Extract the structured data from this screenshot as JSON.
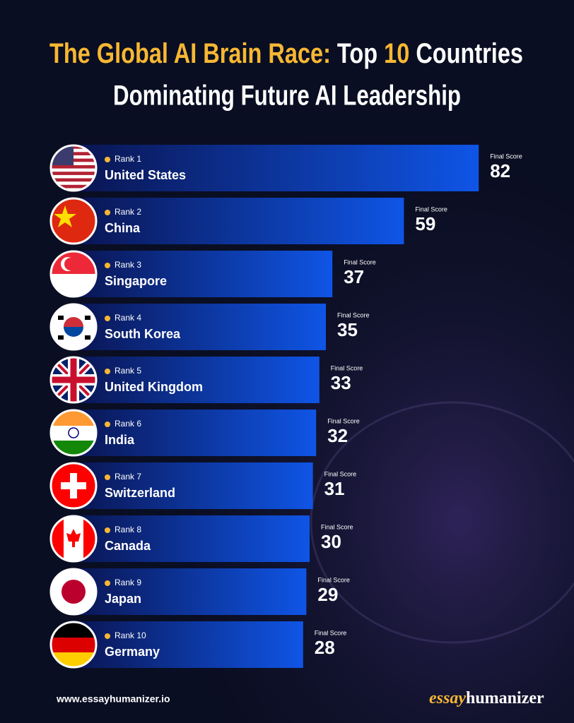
{
  "chart_data": {
    "type": "bar",
    "orientation": "horizontal",
    "title": {
      "part1": "The Global AI Brain Race:",
      "part2": "Top",
      "part3": "10",
      "part4": "Countries",
      "line2": "Dominating Future AI Leadership"
    },
    "ranks": [
      "Rank 1",
      "Rank 2",
      "Rank 3",
      "Rank 4",
      "Rank 5",
      "Rank 6",
      "Rank 7",
      "Rank 8",
      "Rank 9",
      "Rank 10"
    ],
    "categories": [
      "United States",
      "China",
      "Singapore",
      "South Korea",
      "United Kingdom",
      "India",
      "Switzerland",
      "Canada",
      "Japan",
      "Germany"
    ],
    "values": [
      82,
      59,
      37,
      35,
      33,
      32,
      31,
      30,
      29,
      28
    ],
    "score_label": "Final Score",
    "color": "#0f55e6"
  },
  "footer": {
    "website": "www.essayhumanizer.io",
    "logo_part1": "essay",
    "logo_part2": "humanizer"
  }
}
